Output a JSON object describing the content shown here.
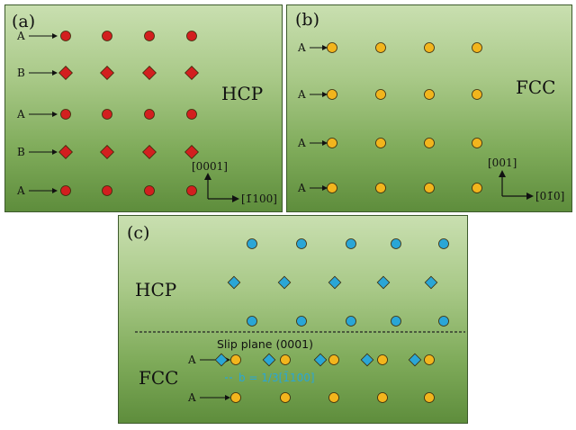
{
  "panels": {
    "a": {
      "tag": "(a)",
      "structure": "HCP",
      "row_labels": [
        "A",
        "B",
        "A",
        "B",
        "A"
      ],
      "row_shapes": [
        "circle",
        "diamond",
        "circle",
        "diamond",
        "circle"
      ],
      "axis_vertical": "[0001]",
      "axis_horizontal": "[1̄100]",
      "atom_color": "#d21f1f"
    },
    "b": {
      "tag": "(b)",
      "structure": "FCC",
      "row_labels": [
        "A",
        "A",
        "A",
        "A"
      ],
      "row_shapes": [
        "circle",
        "circle",
        "circle",
        "circle"
      ],
      "axis_vertical": "[001]",
      "axis_horizontal": "[01̄0]",
      "atom_color": "#f2b51d"
    },
    "c": {
      "tag": "(c)",
      "upper_structure": "HCP",
      "lower_structure": "FCC",
      "slip_plane": "Slip plane (0001)",
      "burgers": "b = 1/3[1̄100]",
      "row_labels": [
        "A",
        "A"
      ],
      "hcp_color": "#2aa6d6",
      "fcc_color": "#f2b51d"
    }
  }
}
